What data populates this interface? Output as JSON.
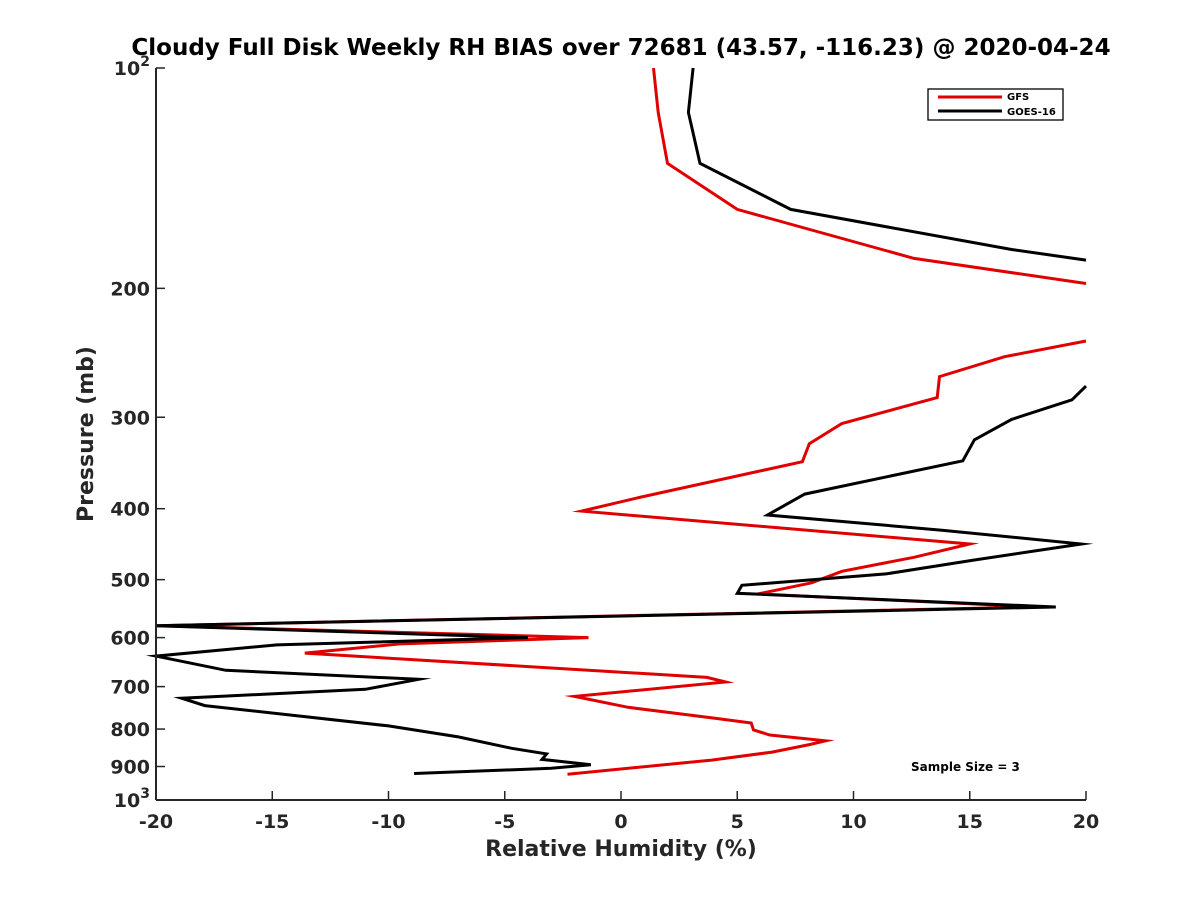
{
  "chart_data": {
    "type": "line",
    "title": "Cloudy Full Disk Weekly RH BIAS over 72681 (43.57, -116.23) @ 2020-04-24",
    "xlabel": "Relative Humidity (%)",
    "ylabel": "Pressure (mb)",
    "xlim": [
      -20,
      20
    ],
    "ylim": [
      100,
      1000
    ],
    "y_scale": "log",
    "y_reversed": true,
    "grid": false,
    "legend_position": "top-right",
    "x_ticks": [
      {
        "value": -20,
        "label": "-20"
      },
      {
        "value": -15,
        "label": "-15"
      },
      {
        "value": -10,
        "label": "-10"
      },
      {
        "value": -5,
        "label": "-5"
      },
      {
        "value": 0,
        "label": "0"
      },
      {
        "value": 5,
        "label": "5"
      },
      {
        "value": 10,
        "label": "10"
      },
      {
        "value": 15,
        "label": "15"
      },
      {
        "value": 20,
        "label": "20"
      }
    ],
    "y_ticks": [
      {
        "value": 100,
        "base": "10",
        "exp": "2"
      },
      {
        "value": 200,
        "label": "200"
      },
      {
        "value": 300,
        "label": "300"
      },
      {
        "value": 400,
        "label": "400"
      },
      {
        "value": 500,
        "label": "500"
      },
      {
        "value": 600,
        "label": "600"
      },
      {
        "value": 700,
        "label": "700"
      },
      {
        "value": 800,
        "label": "800"
      },
      {
        "value": 900,
        "label": "900"
      },
      {
        "value": 1000,
        "base": "10",
        "exp": "3"
      }
    ],
    "series": [
      {
        "name": "GFS",
        "color": "#e00000",
        "segments": [
          [
            [
              1.4,
              100
            ],
            [
              1.6,
              115
            ],
            [
              2,
              135
            ],
            [
              5,
              156
            ],
            [
              12.6,
              182
            ],
            [
              20,
              197
            ]
          ],
          [
            [
              20,
              236
            ],
            [
              16.5,
              248
            ],
            [
              13.7,
              264
            ],
            [
              13.6,
              282
            ],
            [
              9.5,
              306
            ],
            [
              8.1,
              326
            ],
            [
              7.8,
              345
            ],
            [
              0.8,
              386
            ],
            [
              -1.7,
              403
            ],
            [
              15,
              447
            ],
            [
              12.6,
              466
            ],
            [
              9.5,
              487
            ],
            [
              8.2,
              505
            ],
            [
              5.9,
              523
            ],
            [
              17.9,
              545
            ],
            [
              -20,
              578
            ],
            [
              -1.4,
              600
            ],
            [
              -9.5,
              612
            ],
            [
              -13.6,
              630
            ],
            [
              3.7,
              680
            ],
            [
              4.5,
              690
            ],
            [
              -2.0,
              722
            ],
            [
              0.3,
              747
            ],
            [
              4,
              773
            ],
            [
              5.6,
              785
            ],
            [
              5.7,
              802
            ],
            [
              6.4,
              815
            ],
            [
              8.8,
              830
            ],
            [
              8.1,
              840
            ],
            [
              6.5,
              860
            ],
            [
              3.9,
              882
            ],
            [
              -2.3,
              922
            ]
          ]
        ]
      },
      {
        "name": "GOES-16",
        "color": "#000000",
        "segments": [
          [
            [
              3.1,
              100
            ],
            [
              2.9,
              115
            ],
            [
              3.4,
              135
            ],
            [
              7.3,
              156
            ],
            [
              16.8,
              177
            ],
            [
              20,
              183
            ]
          ],
          [
            [
              20,
              272
            ],
            [
              19.4,
              284
            ],
            [
              16.8,
              302
            ],
            [
              15.2,
              322
            ],
            [
              14.7,
              344
            ],
            [
              7.9,
              382
            ],
            [
              6.3,
              408
            ],
            [
              13.8,
              428
            ],
            [
              19.8,
              447
            ],
            [
              15.2,
              470
            ],
            [
              11.4,
              491
            ],
            [
              5.2,
              509
            ],
            [
              5,
              522
            ],
            [
              18.7,
              545
            ],
            [
              -20,
              578
            ],
            [
              -4,
              600
            ],
            [
              -14.8,
              614
            ],
            [
              -20,
              636
            ],
            [
              -17,
              665
            ],
            [
              -8.7,
              684
            ],
            [
              -11,
              706
            ],
            [
              -18.9,
              726
            ],
            [
              -17.9,
              743
            ],
            [
              -10,
              792
            ],
            [
              -7,
              820
            ],
            [
              -4.7,
              850
            ],
            [
              -3.2,
              865
            ],
            [
              -3.4,
              880
            ],
            [
              -1.3,
              895
            ],
            [
              -3.0,
              905
            ],
            [
              -8.9,
              920
            ]
          ]
        ]
      }
    ],
    "annotation": "Sample Size = 3"
  }
}
